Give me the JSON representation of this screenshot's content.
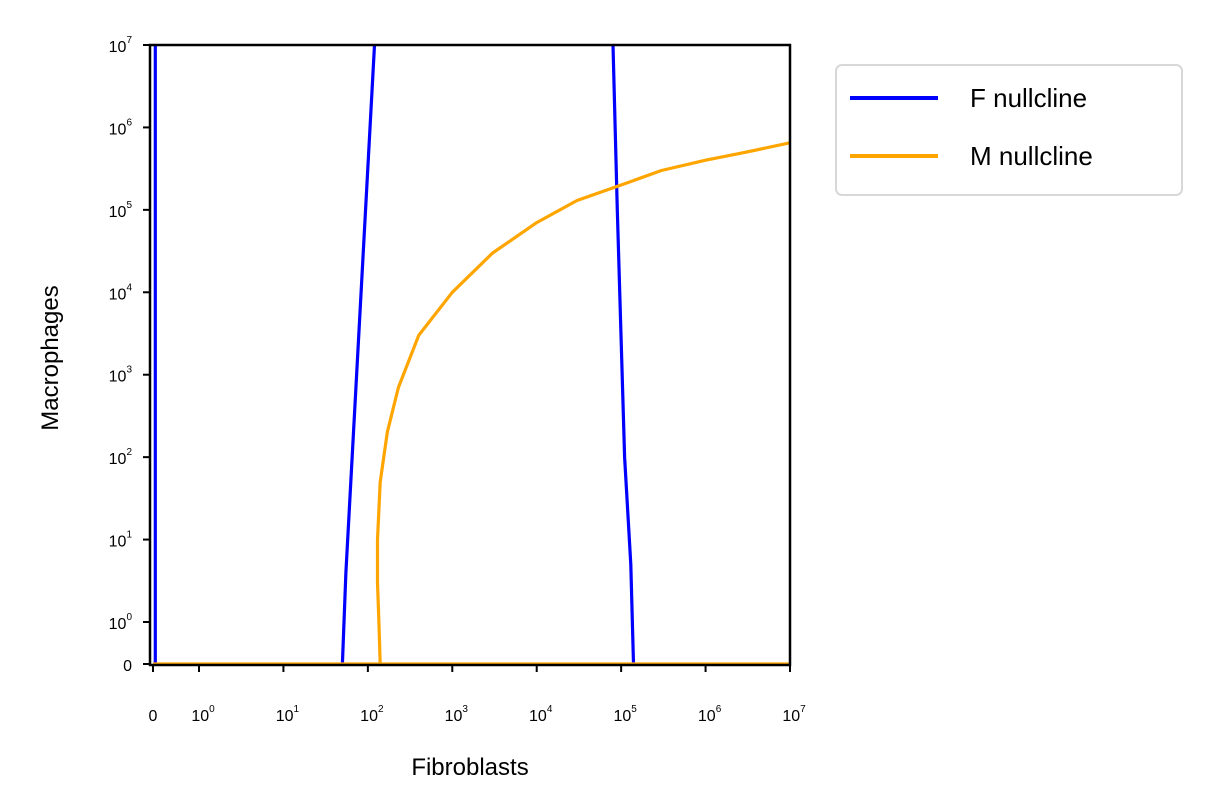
{
  "chart_data": {
    "type": "line",
    "xlabel": "Fibroblasts",
    "ylabel": "Macrophages",
    "xscale": "symlog",
    "yscale": "symlog",
    "xlim": [
      0,
      10000000
    ],
    "ylim": [
      0,
      10000000
    ],
    "grid": false,
    "legend_position": "outside-top-right",
    "x_ticks": [
      {
        "value": 0,
        "base": "0",
        "exp": ""
      },
      {
        "value": 1,
        "base": "10",
        "exp": "0"
      },
      {
        "value": 10,
        "base": "10",
        "exp": "1"
      },
      {
        "value": 100,
        "base": "10",
        "exp": "2"
      },
      {
        "value": 1000,
        "base": "10",
        "exp": "3"
      },
      {
        "value": 10000,
        "base": "10",
        "exp": "4"
      },
      {
        "value": 100000,
        "base": "10",
        "exp": "5"
      },
      {
        "value": 1000000,
        "base": "10",
        "exp": "6"
      },
      {
        "value": 10000000,
        "base": "10",
        "exp": "7"
      }
    ],
    "y_ticks": [
      {
        "value": 0,
        "base": "0",
        "exp": ""
      },
      {
        "value": 1,
        "base": "10",
        "exp": "0"
      },
      {
        "value": 10,
        "base": "10",
        "exp": "1"
      },
      {
        "value": 100,
        "base": "10",
        "exp": "2"
      },
      {
        "value": 1000,
        "base": "10",
        "exp": "3"
      },
      {
        "value": 10000,
        "base": "10",
        "exp": "4"
      },
      {
        "value": 100000,
        "base": "10",
        "exp": "5"
      },
      {
        "value": 1000000,
        "base": "10",
        "exp": "6"
      },
      {
        "value": 10000000,
        "base": "10",
        "exp": "7"
      }
    ],
    "series": [
      {
        "name": "F nullcline",
        "color": "#0000ff",
        "segments": [
          [
            [
              0.05,
              0
            ],
            [
              0.05,
              10000000
            ]
          ],
          [
            [
              50,
              0
            ],
            [
              55,
              4
            ],
            [
              120,
              10000000
            ]
          ],
          [
            [
              140000,
              0
            ],
            [
              130000,
              5
            ],
            [
              110000,
              100
            ],
            [
              90000,
              100000
            ],
            [
              80000,
              10000000
            ]
          ]
        ]
      },
      {
        "name": "M nullcline",
        "color": "#ffa500",
        "segments": [
          [
            [
              0,
              0
            ],
            [
              10000000,
              0
            ]
          ],
          [
            [
              140,
              0
            ],
            [
              135,
              1
            ],
            [
              130,
              3
            ],
            [
              130,
              10
            ],
            [
              140,
              50
            ],
            [
              170,
              200
            ],
            [
              230,
              700
            ],
            [
              400,
              3000
            ],
            [
              1000,
              10000
            ],
            [
              3000,
              30000
            ],
            [
              10000,
              70000
            ],
            [
              30000,
              130000
            ],
            [
              100000,
              200000
            ],
            [
              300000,
              300000
            ],
            [
              1000000,
              400000
            ],
            [
              3000000,
              500000
            ],
            [
              10000000,
              650000
            ]
          ]
        ]
      }
    ]
  }
}
